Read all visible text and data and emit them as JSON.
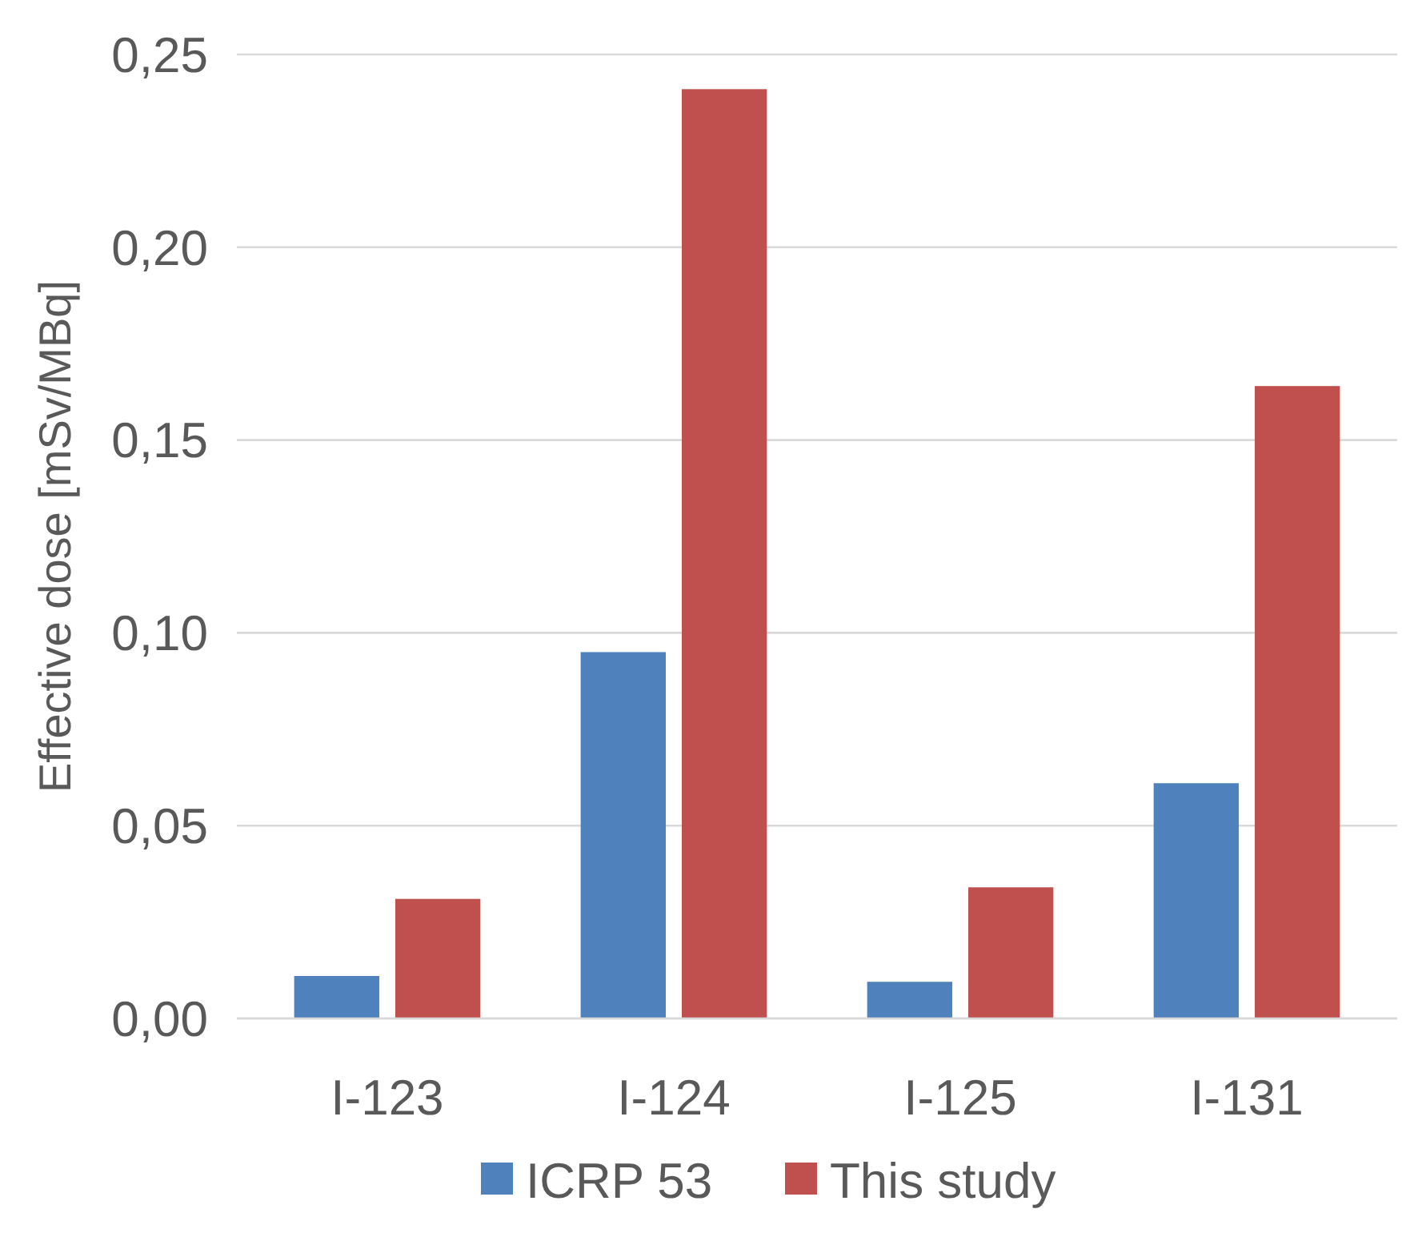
{
  "chart_data": {
    "type": "bar",
    "ylabel": "Effective dose [mSv/MBq]",
    "categories": [
      "I-123",
      "I-124",
      "I-125",
      "I-131"
    ],
    "series": [
      {
        "name": "ICRP 53",
        "color": "#4f81bd",
        "values": [
          0.011,
          0.095,
          0.0095,
          0.061
        ]
      },
      {
        "name": "This study",
        "color": "#c0504d",
        "values": [
          0.031,
          0.241,
          0.034,
          0.164
        ]
      }
    ],
    "ylim": [
      0,
      0.25
    ],
    "yticks": [
      {
        "value": 0,
        "label": "0,00"
      },
      {
        "value": 0.05,
        "label": "0,05"
      },
      {
        "value": 0.1,
        "label": "0,10"
      },
      {
        "value": 0.15,
        "label": "0,15"
      },
      {
        "value": 0.2,
        "label": "0,20"
      },
      {
        "value": 0.25,
        "label": "0,25"
      }
    ],
    "grid": "y",
    "legend": "bottom"
  }
}
